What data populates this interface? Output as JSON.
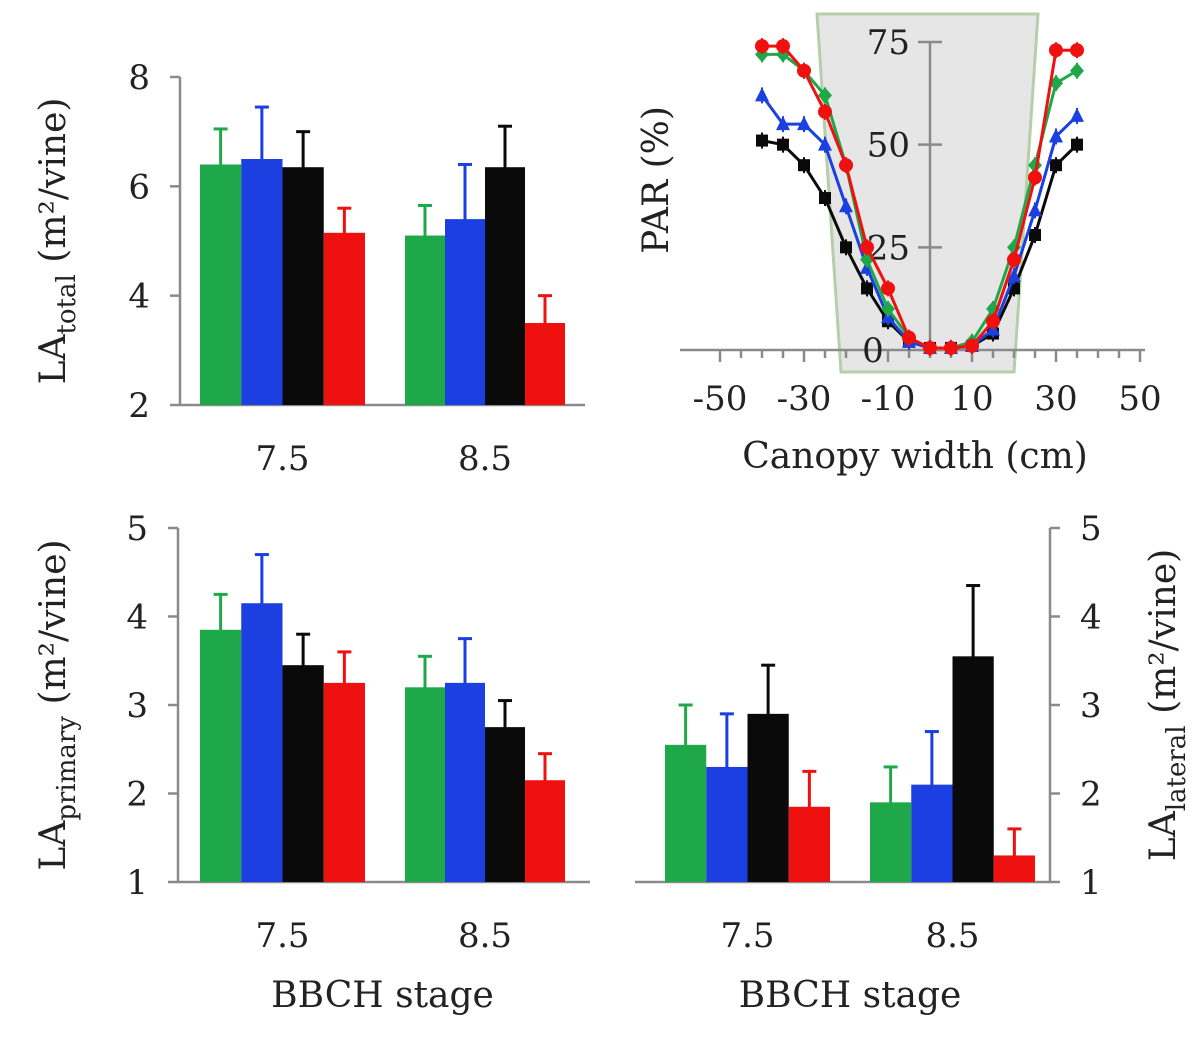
{
  "colors": {
    "green": "#1fa84a",
    "blue": "#1b3fe0",
    "black": "#0a0a0a",
    "red": "#ef1010"
  },
  "chart_data": [
    {
      "panel": "top-left",
      "type": "bar",
      "categories": [
        "7.5",
        "8.5"
      ],
      "ylabel": "LA",
      "ylabel_sub": "total",
      "ylabel_unit": " (m²/vine)",
      "ylim": [
        2,
        8
      ],
      "yticks": [
        "2",
        "4",
        "6",
        "8"
      ],
      "series": [
        {
          "color": "green",
          "values": [
            6.4,
            5.1
          ],
          "errors": [
            0.65,
            0.55
          ]
        },
        {
          "color": "blue",
          "values": [
            6.5,
            5.4
          ],
          "errors": [
            0.95,
            1.0
          ]
        },
        {
          "color": "black",
          "values": [
            6.35,
            6.35
          ],
          "errors": [
            0.65,
            0.75
          ]
        },
        {
          "color": "red",
          "values": [
            5.15,
            3.5
          ],
          "errors": [
            0.45,
            0.5
          ]
        }
      ]
    },
    {
      "panel": "top-right",
      "type": "line",
      "xlabel": "Canopy width (cm)",
      "ylabel": "PAR (%)",
      "xlim": [
        -50,
        50
      ],
      "ylim": [
        0,
        75
      ],
      "xticks": [
        "-50",
        "-30",
        "-10",
        "10",
        "30",
        "50"
      ],
      "yticks": [
        "0",
        "25",
        "50",
        "75"
      ],
      "series": [
        {
          "color": "black",
          "marker": "square",
          "x": [
            -40,
            -35,
            -30,
            -25,
            -20,
            -15,
            -10,
            -5,
            0,
            5,
            10,
            15,
            20,
            25,
            30,
            35
          ],
          "y": [
            51,
            50,
            45,
            37,
            25,
            15,
            7,
            2,
            0.5,
            0.5,
            1,
            4,
            15,
            28,
            45,
            50
          ]
        },
        {
          "color": "blue",
          "marker": "triangle",
          "x": [
            -40,
            -35,
            -30,
            -25,
            -20,
            -15,
            -10,
            -5,
            0,
            5,
            10,
            15,
            20,
            25,
            30,
            35
          ],
          "y": [
            62,
            55,
            55,
            50,
            35,
            20,
            8,
            2,
            0.5,
            0.5,
            1,
            5,
            18,
            34,
            52,
            57
          ]
        },
        {
          "color": "green",
          "marker": "diamond",
          "x": [
            -40,
            -35,
            -30,
            -25,
            -20,
            -15,
            -10,
            -5,
            0,
            5,
            10,
            15,
            20,
            25,
            30,
            35
          ],
          "y": [
            72,
            72,
            68,
            62,
            45,
            22,
            10,
            3,
            0.5,
            0.5,
            2,
            10,
            25,
            45,
            65,
            68
          ]
        },
        {
          "color": "red",
          "marker": "circle",
          "x": [
            -40,
            -35,
            -30,
            -25,
            -20,
            -15,
            -10,
            -5,
            0,
            5,
            10,
            15,
            20,
            25,
            30,
            35
          ],
          "y": [
            74,
            74,
            68,
            58,
            45,
            25,
            15,
            3,
            0.5,
            0.5,
            1,
            7,
            22,
            42,
            73,
            73
          ]
        }
      ]
    },
    {
      "panel": "bottom-left",
      "type": "bar",
      "categories": [
        "7.5",
        "8.5"
      ],
      "xlabel": "BBCH stage",
      "ylabel": "LA",
      "ylabel_sub": "primary",
      "ylabel_unit": " (m²/vine)",
      "ylim": [
        1,
        5
      ],
      "yticks": [
        "1",
        "2",
        "3",
        "4",
        "5"
      ],
      "series": [
        {
          "color": "green",
          "values": [
            3.85,
            3.2
          ],
          "errors": [
            0.4,
            0.35
          ]
        },
        {
          "color": "blue",
          "values": [
            4.15,
            3.25
          ],
          "errors": [
            0.55,
            0.5
          ]
        },
        {
          "color": "black",
          "values": [
            3.45,
            2.75
          ],
          "errors": [
            0.35,
            0.3
          ]
        },
        {
          "color": "red",
          "values": [
            3.25,
            2.15
          ],
          "errors": [
            0.35,
            0.3
          ]
        }
      ]
    },
    {
      "panel": "bottom-right",
      "type": "bar",
      "categories": [
        "7.5",
        "8.5"
      ],
      "xlabel": "BBCH stage",
      "ylabel": "LA",
      "ylabel_sub": "lateral",
      "ylabel_unit": " (m²/vine)",
      "ylim": [
        1,
        5
      ],
      "yticks": [
        "1",
        "2",
        "3",
        "4",
        "5"
      ],
      "series": [
        {
          "color": "green",
          "values": [
            2.55,
            1.9
          ],
          "errors": [
            0.45,
            0.4
          ]
        },
        {
          "color": "blue",
          "values": [
            2.3,
            2.1
          ],
          "errors": [
            0.6,
            0.6
          ]
        },
        {
          "color": "black",
          "values": [
            2.9,
            3.55
          ],
          "errors": [
            0.55,
            0.8
          ]
        },
        {
          "color": "red",
          "values": [
            1.85,
            1.3
          ],
          "errors": [
            0.4,
            0.3
          ]
        }
      ]
    }
  ]
}
